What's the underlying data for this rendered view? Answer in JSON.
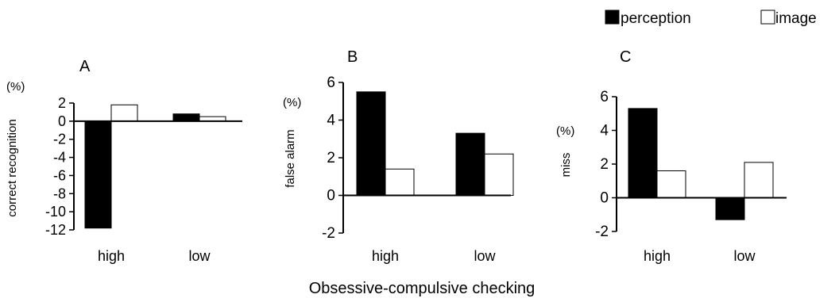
{
  "figure": {
    "shared_xlabel": "Obsessive-compulsive checking",
    "legend": [
      {
        "label": "perception",
        "color": "#000000"
      },
      {
        "label": "image",
        "color": "#ffffff"
      }
    ],
    "legend_position": "top-right"
  },
  "chart_data": [
    {
      "type": "bar",
      "panel_label": "A",
      "ylabel": "correct recognition",
      "unit": "(%)",
      "categories": [
        "high",
        "low"
      ],
      "series": [
        {
          "name": "perception",
          "values": [
            -11.8,
            0.8
          ]
        },
        {
          "name": "image",
          "values": [
            1.8,
            0.5
          ]
        }
      ],
      "ylim": [
        -12,
        2
      ],
      "yticks": [
        2,
        0,
        -2,
        -4,
        -6,
        -8,
        -10,
        -12
      ],
      "grid": false
    },
    {
      "type": "bar",
      "panel_label": "B",
      "ylabel": "false alarm",
      "unit": "(%)",
      "categories": [
        "high",
        "low"
      ],
      "series": [
        {
          "name": "perception",
          "values": [
            5.5,
            3.3
          ]
        },
        {
          "name": "image",
          "values": [
            1.4,
            2.2
          ]
        }
      ],
      "ylim": [
        -2,
        6
      ],
      "yticks": [
        6,
        4,
        2,
        0,
        -2
      ],
      "grid": false
    },
    {
      "type": "bar",
      "panel_label": "C",
      "ylabel": "miss",
      "unit": "(%)",
      "categories": [
        "high",
        "low"
      ],
      "series": [
        {
          "name": "perception",
          "values": [
            5.3,
            -1.3
          ]
        },
        {
          "name": "image",
          "values": [
            1.6,
            2.1
          ]
        }
      ],
      "ylim": [
        -2,
        6
      ],
      "yticks": [
        6,
        4,
        2,
        0,
        -2
      ],
      "grid": false
    }
  ]
}
